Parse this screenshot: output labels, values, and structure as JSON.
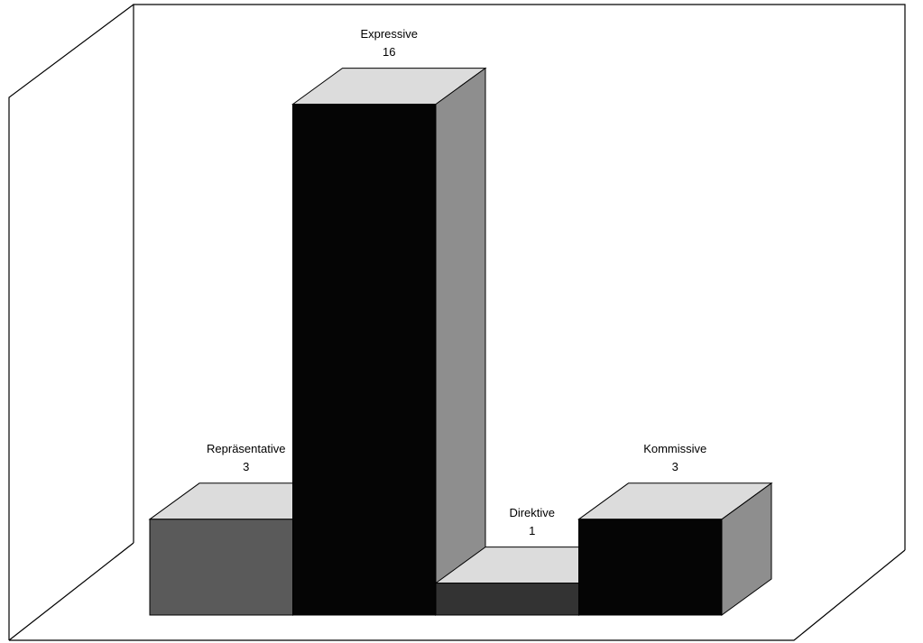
{
  "chart_data": {
    "type": "bar3d",
    "categories": [
      "Repräsentative",
      "Expressive",
      "Direktive",
      "Kommissive"
    ],
    "values": [
      3,
      16,
      1,
      3
    ],
    "colors": [
      "#5a5a5a",
      "#050505",
      "#333333",
      "#050505"
    ]
  }
}
